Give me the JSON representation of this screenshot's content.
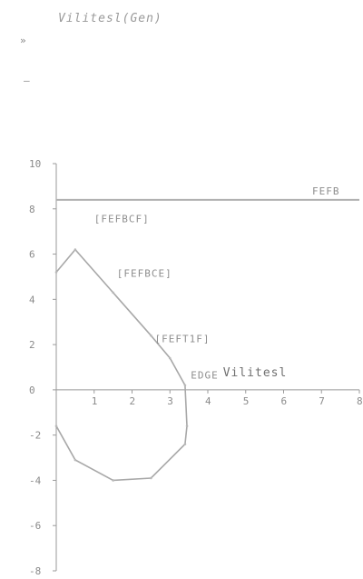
{
  "chart_data": {
    "type": "line",
    "title": "Vilitesl(Gen)",
    "header_marks": [
      "»",
      "—"
    ],
    "y_tick_labels": [
      "10",
      "8",
      "6",
      "4",
      "2",
      "0",
      "-2",
      "-4",
      "-6",
      "-8"
    ],
    "y_ticks": [
      10,
      8,
      6,
      4,
      2,
      0,
      -2,
      -4,
      -6,
      -8
    ],
    "x_tick_labels": [
      "1",
      "2",
      "3",
      "4",
      "5",
      "6",
      "7",
      "8"
    ],
    "x_ticks": [
      1,
      2,
      3,
      4,
      5,
      6,
      7,
      8
    ],
    "xlim": [
      0,
      8
    ],
    "ylim": [
      -8,
      10
    ],
    "reference_line": {
      "y": 8.4,
      "label": "FEFB"
    },
    "series": [
      {
        "x": [
          0,
          0.5,
          1.5,
          2.5,
          3.0,
          3.4,
          3.45,
          3.4,
          2.5,
          1.5,
          0.5,
          0
        ],
        "y": [
          5.2,
          6.2,
          4.3,
          2.4,
          1.4,
          0.2,
          -1.6,
          -2.4,
          -3.9,
          -4.0,
          -3.1,
          -1.6
        ]
      }
    ],
    "annotations": [
      {
        "x": 1.0,
        "y": 7.4,
        "text": "[FEFBCF]"
      },
      {
        "x": 1.6,
        "y": 5.0,
        "text": "[FEFBCE]"
      },
      {
        "x": 2.6,
        "y": 2.1,
        "text": "[FEFT1F]"
      },
      {
        "x": 3.55,
        "y": 0.5,
        "text": "EDGE",
        "style": "small"
      },
      {
        "x": 4.4,
        "y": 0.6,
        "text": "Vilitesl",
        "style": "big"
      }
    ]
  }
}
